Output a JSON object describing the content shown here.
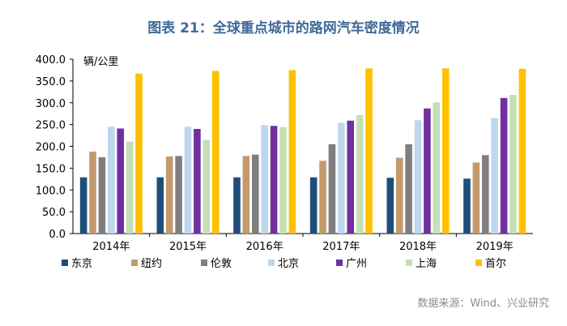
{
  "chart_data": {
    "type": "bar",
    "title": "图表 21：全球重点城市的路网汽车密度情况",
    "ylabel": "辆/公里",
    "xlabel": "",
    "categories": [
      "2014年",
      "2015年",
      "2016年",
      "2017年",
      "2018年",
      "2019年"
    ],
    "ylim": [
      0,
      400
    ],
    "yticks": [
      "0.0",
      "50.0",
      "100.0",
      "150.0",
      "200.0",
      "250.0",
      "300.0",
      "350.0",
      "400.0"
    ],
    "series": [
      {
        "name": "东京",
        "color": "#1f4e79",
        "values": [
          129,
          129,
          129,
          129,
          128,
          126
        ]
      },
      {
        "name": "纽约",
        "color": "#c49a6c",
        "values": [
          188,
          177,
          178,
          167,
          174,
          163
        ]
      },
      {
        "name": "伦敦",
        "color": "#7f7f7f",
        "values": [
          175,
          178,
          181,
          205,
          205,
          180
        ]
      },
      {
        "name": "北京",
        "color": "#bdd7ee",
        "values": [
          245,
          245,
          249,
          254,
          260,
          265
        ]
      },
      {
        "name": "广州",
        "color": "#7030a0",
        "values": [
          241,
          240,
          247,
          259,
          287,
          311
        ]
      },
      {
        "name": "上海",
        "color": "#c5e0b4",
        "values": [
          211,
          215,
          244,
          272,
          301,
          318
        ]
      },
      {
        "name": "首尔",
        "color": "#ffc000",
        "values": [
          367,
          373,
          375,
          379,
          379,
          378
        ]
      }
    ],
    "legend_position": "bottom",
    "grid": false
  },
  "source_note": "数据来源：Wind、兴业研究"
}
